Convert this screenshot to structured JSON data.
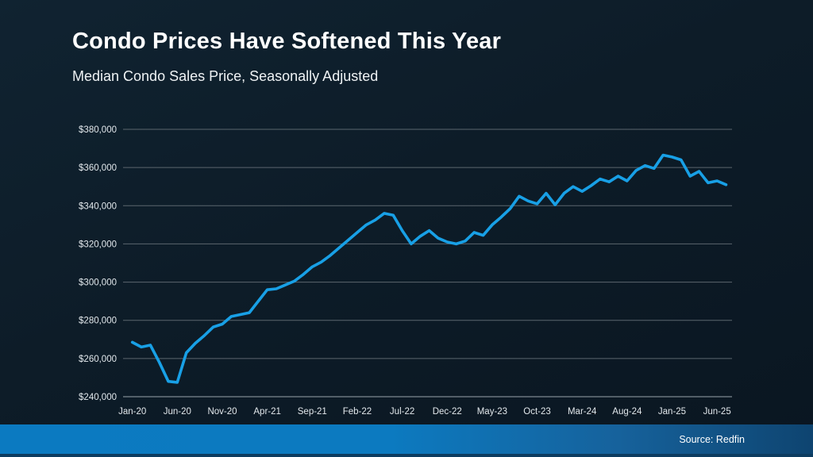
{
  "slide": {
    "title": "Condo Prices Have Softened This Year",
    "subtitle": "Median Condo Sales Price, Seasonally Adjusted",
    "source": "Source: Redfin"
  },
  "colors": {
    "line": "#18a0e6",
    "gridline": "#5b666e",
    "axis_baseline": "#9aa4ab",
    "tick_text": "#e2e8ec",
    "title_text": "#ffffff",
    "footer_blue_left": "#0b7ac1",
    "footer_blue_right": "#0e4470"
  },
  "chart_data": {
    "type": "line",
    "title": "Median Condo Sales Price, Seasonally Adjusted",
    "series_name": "Median Condo Sales Price",
    "grid": "horizontal",
    "legend": "none",
    "ylim": [
      240000,
      380000
    ],
    "y_ticks": [
      240000,
      260000,
      280000,
      300000,
      320000,
      340000,
      360000,
      380000
    ],
    "y_tick_prefix": "$",
    "x_tick_every": 5,
    "x_tick_labels": [
      "Jan-20",
      "Jun-20",
      "Nov-20",
      "Apr-21",
      "Sep-21",
      "Feb-22",
      "Jul-22",
      "Dec-22",
      "May-23",
      "Oct-23",
      "Mar-24",
      "Aug-24",
      "Jan-25",
      "Jun-25"
    ],
    "months": [
      "Jan-20",
      "Feb-20",
      "Mar-20",
      "Apr-20",
      "May-20",
      "Jun-20",
      "Jul-20",
      "Aug-20",
      "Sep-20",
      "Oct-20",
      "Nov-20",
      "Dec-20",
      "Jan-21",
      "Feb-21",
      "Mar-21",
      "Apr-21",
      "May-21",
      "Jun-21",
      "Jul-21",
      "Aug-21",
      "Sep-21",
      "Oct-21",
      "Nov-21",
      "Dec-21",
      "Jan-22",
      "Feb-22",
      "Mar-22",
      "Apr-22",
      "May-22",
      "Jun-22",
      "Jul-22",
      "Aug-22",
      "Sep-22",
      "Oct-22",
      "Nov-22",
      "Dec-22",
      "Jan-23",
      "Feb-23",
      "Mar-23",
      "Apr-23",
      "May-23",
      "Jun-23",
      "Jul-23",
      "Aug-23",
      "Sep-23",
      "Oct-23",
      "Nov-23",
      "Dec-23",
      "Jan-24",
      "Feb-24",
      "Mar-24",
      "Apr-24",
      "May-24",
      "Jun-24",
      "Jul-24",
      "Aug-24",
      "Sep-24",
      "Oct-24",
      "Nov-24",
      "Dec-24",
      "Jan-25",
      "Feb-25",
      "Mar-25",
      "Apr-25",
      "May-25",
      "Jun-25",
      "Jul-25"
    ],
    "values": [
      268500,
      266000,
      267000,
      258000,
      248000,
      247500,
      263000,
      268000,
      272000,
      276500,
      278000,
      282000,
      283000,
      284000,
      290000,
      296000,
      296500,
      298500,
      300500,
      304000,
      308000,
      310500,
      314000,
      318000,
      322000,
      326000,
      330000,
      332500,
      336000,
      335000,
      327000,
      320000,
      324000,
      327000,
      323000,
      321000,
      320000,
      321500,
      326000,
      324500,
      330000,
      334000,
      338500,
      345000,
      342500,
      341000,
      346500,
      340500,
      346500,
      350000,
      347500,
      350500,
      354000,
      352500,
      355500,
      353000,
      358500,
      361000,
      359500,
      366500,
      365500,
      364000,
      355500,
      358000,
      352000,
      353000,
      351000
    ]
  }
}
